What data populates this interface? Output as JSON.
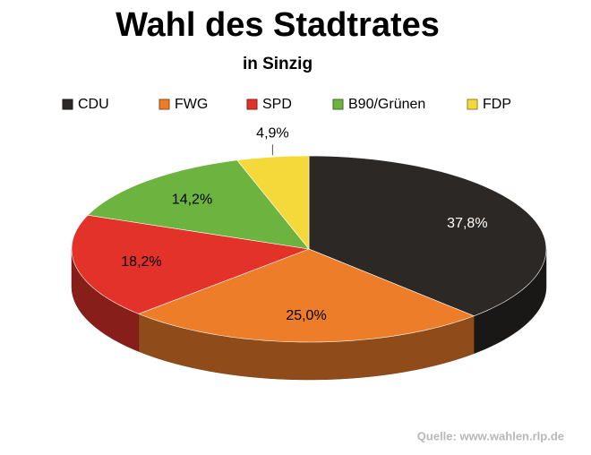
{
  "chart_data": {
    "type": "pie3d",
    "title": "Wahl des Stadtrates",
    "subtitle": "in Sinzig",
    "categories": [
      "CDU",
      "FWG",
      "SPD",
      "B90/Grünen",
      "FDP"
    ],
    "values": [
      37.8,
      25.0,
      18.2,
      14.2,
      4.9
    ],
    "value_labels": [
      "37,8%",
      "25,0%",
      "18,2%",
      "14,2%",
      "4,9%"
    ],
    "colors": [
      "#2b2826",
      "#ee7d2a",
      "#e2322a",
      "#6db33f",
      "#f5d93a"
    ],
    "source": "Quelle: www.wahlen.rlp.de"
  }
}
